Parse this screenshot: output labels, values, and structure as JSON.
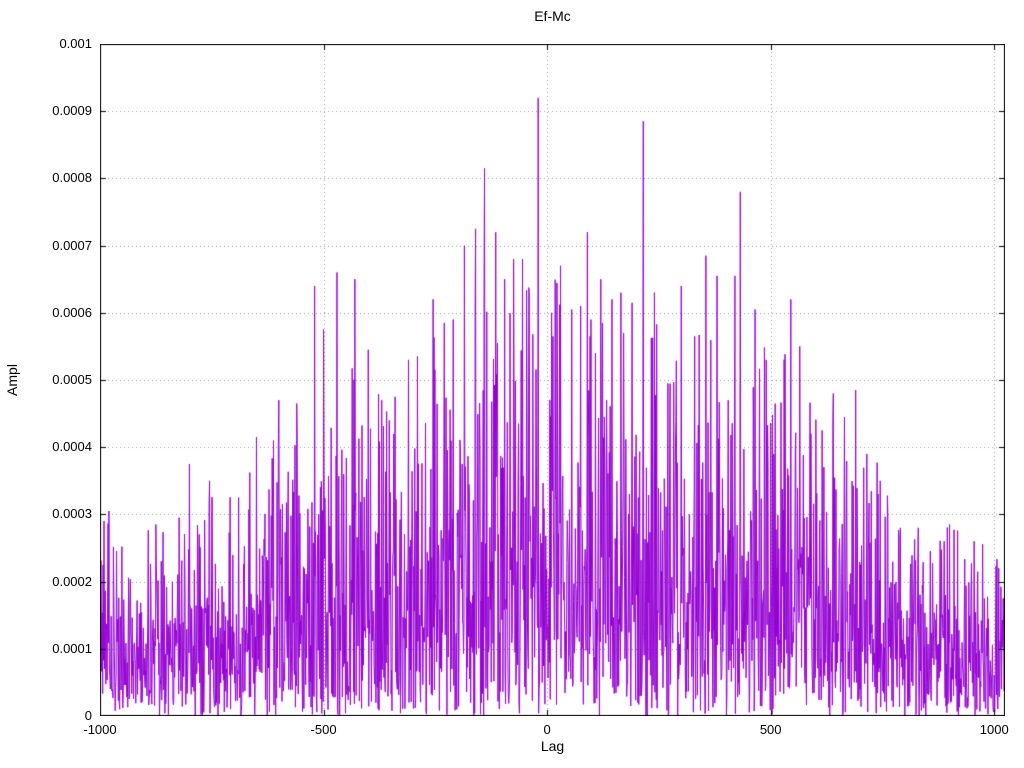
{
  "chart_data": {
    "type": "line",
    "title": "Ef-Mc",
    "xlabel": "Lag",
    "ylabel": "Ampl",
    "xlim": [
      -1000,
      1024
    ],
    "ylim": [
      0,
      0.001
    ],
    "grid": true,
    "legend": "none",
    "line_color": "#9400d3",
    "grid_color": "#9a9a9a",
    "border_color": "#000000",
    "xticks": [
      {
        "value": -1000,
        "label": "-1000"
      },
      {
        "value": -500,
        "label": "-500"
      },
      {
        "value": 0,
        "label": "0"
      },
      {
        "value": 500,
        "label": "500"
      },
      {
        "value": 1000,
        "label": "1000"
      }
    ],
    "yticks": [
      {
        "value": 0,
        "label": "0"
      },
      {
        "value": 0.0001,
        "label": "0.0001"
      },
      {
        "value": 0.0002,
        "label": "0.0002"
      },
      {
        "value": 0.0003,
        "label": "0.0003"
      },
      {
        "value": 0.0004,
        "label": "0.0004"
      },
      {
        "value": 0.0005,
        "label": "0.0005"
      },
      {
        "value": 0.0006,
        "label": "0.0006"
      },
      {
        "value": 0.0007,
        "label": "0.0007"
      },
      {
        "value": 0.0008,
        "label": "0.0008"
      },
      {
        "value": 0.0009,
        "label": "0.0009"
      },
      {
        "value": 0.001,
        "label": "0.001"
      }
    ],
    "series": [
      {
        "name": "Ef-Mc",
        "style": "lines",
        "x_start": -1000,
        "x_end": 1024,
        "x_step": 1,
        "noise_seed": 42,
        "noise_sigma_ratio": 0.45,
        "noise_clip_ratio": 1.05,
        "envelope_points": [
          [
            -1000,
            0.00028
          ],
          [
            -950,
            0.00026
          ],
          [
            -900,
            0.00026
          ],
          [
            -850,
            0.00028
          ],
          [
            -800,
            0.00032
          ],
          [
            -750,
            0.00031
          ],
          [
            -700,
            0.00031
          ],
          [
            -650,
            0.00036
          ],
          [
            -600,
            0.0004
          ],
          [
            -550,
            0.00042
          ],
          [
            -500,
            0.0005
          ],
          [
            -450,
            0.00052
          ],
          [
            -400,
            0.00047
          ],
          [
            -350,
            0.00044
          ],
          [
            -300,
            0.00048
          ],
          [
            -250,
            0.00054
          ],
          [
            -200,
            0.00058
          ],
          [
            -150,
            0.00062
          ],
          [
            -100,
            0.0006
          ],
          [
            -50,
            0.0006
          ],
          [
            0,
            0.00064
          ],
          [
            50,
            0.00058
          ],
          [
            100,
            0.0006
          ],
          [
            150,
            0.00056
          ],
          [
            200,
            0.0006
          ],
          [
            250,
            0.00055
          ],
          [
            300,
            0.00054
          ],
          [
            350,
            0.00054
          ],
          [
            400,
            0.00056
          ],
          [
            450,
            0.00058
          ],
          [
            500,
            0.0005
          ],
          [
            550,
            0.00052
          ],
          [
            600,
            0.00042
          ],
          [
            650,
            0.00042
          ],
          [
            700,
            0.00042
          ],
          [
            750,
            0.00034
          ],
          [
            800,
            0.0003
          ],
          [
            850,
            0.00028
          ],
          [
            900,
            0.00027
          ],
          [
            950,
            0.00025
          ],
          [
            1024,
            0.00023
          ]
        ],
        "notable_peaks": [
          [
            -980,
            0.000305
          ],
          [
            -875,
            0.000285
          ],
          [
            -800,
            0.000375
          ],
          [
            -755,
            0.00035
          ],
          [
            -690,
            0.000325
          ],
          [
            -650,
            0.000415
          ],
          [
            -600,
            0.00047
          ],
          [
            -560,
            0.000465
          ],
          [
            -520,
            0.00064
          ],
          [
            -500,
            0.000575
          ],
          [
            -470,
            0.00066
          ],
          [
            -430,
            0.00065
          ],
          [
            -400,
            0.000545
          ],
          [
            -370,
            0.00047
          ],
          [
            -340,
            0.000475
          ],
          [
            -310,
            0.00053
          ],
          [
            -290,
            0.000535
          ],
          [
            -255,
            0.00062
          ],
          [
            -230,
            0.000585
          ],
          [
            -210,
            0.00059
          ],
          [
            -185,
            0.0007
          ],
          [
            -160,
            0.000725
          ],
          [
            -140,
            0.000815
          ],
          [
            -115,
            0.00072
          ],
          [
            -95,
            0.00065
          ],
          [
            -75,
            0.00068
          ],
          [
            -55,
            0.00068
          ],
          [
            -40,
            0.00063
          ],
          [
            -20,
            0.00092
          ],
          [
            10,
            0.0006
          ],
          [
            30,
            0.00067
          ],
          [
            55,
            0.000605
          ],
          [
            75,
            0.00061
          ],
          [
            90,
            0.00072
          ],
          [
            120,
            0.00065
          ],
          [
            145,
            0.00062
          ],
          [
            165,
            0.00063
          ],
          [
            190,
            0.000615
          ],
          [
            215,
            0.000885
          ],
          [
            240,
            0.00063
          ],
          [
            270,
            0.000495
          ],
          [
            300,
            0.00064
          ],
          [
            330,
            0.000565
          ],
          [
            355,
            0.000685
          ],
          [
            380,
            0.000655
          ],
          [
            405,
            0.00047
          ],
          [
            420,
            0.000655
          ],
          [
            432,
            0.00078
          ],
          [
            465,
            0.000605
          ],
          [
            490,
            0.00053
          ],
          [
            510,
            0.000465
          ],
          [
            530,
            0.00053
          ],
          [
            545,
            0.00062
          ],
          [
            565,
            0.00055
          ],
          [
            590,
            0.00042
          ],
          [
            615,
            0.000425
          ],
          [
            640,
            0.00048
          ],
          [
            665,
            0.000445
          ],
          [
            690,
            0.000485
          ],
          [
            715,
            0.00039
          ],
          [
            745,
            0.00035
          ],
          [
            790,
            0.00028
          ],
          [
            830,
            0.00028
          ],
          [
            900,
            0.000285
          ],
          [
            955,
            0.00026
          ],
          [
            1010,
            0.00022
          ]
        ]
      }
    ]
  }
}
